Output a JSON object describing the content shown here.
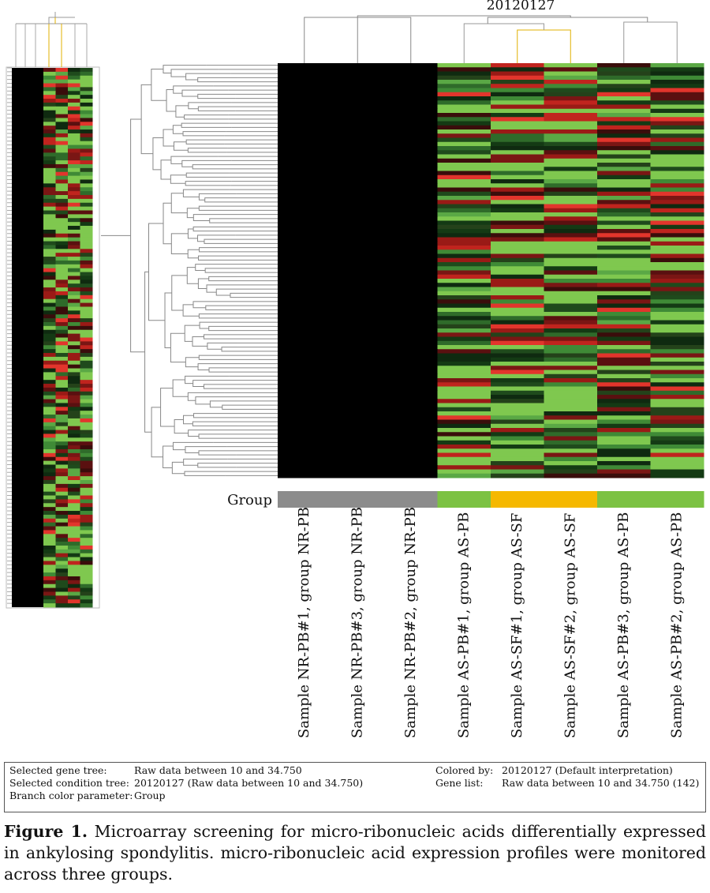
{
  "figure": {
    "condition_title": "20120127",
    "group_label": "Group",
    "samples": [
      "Sample NR-PB#1, group NR-PB",
      "Sample NR-PB#3, group NR-PB",
      "Sample NR-PB#2, group NR-PB",
      "Sample AS-PB#1, group AS-PB",
      "Sample AS-SF#1, group AS-SF",
      "Sample AS-SF#2, group AS-SF",
      "Sample AS-PB#3, group AS-PB",
      "Sample AS-PB#2, group AS-PB"
    ],
    "info": {
      "left": [
        {
          "key": "Selected gene tree:",
          "value": "Raw data between 10 and 34.750"
        },
        {
          "key": "Selected condition tree:",
          "value": "20120127 (Raw data between 10 and 34.750)"
        },
        {
          "key": "Branch color parameter:",
          "value": "Group"
        }
      ],
      "right": [
        {
          "key": "Colored by:",
          "value": "20120127 (Default interpretation)"
        },
        {
          "key": "Gene list:",
          "value": "Raw data between 10 and 34.750 (142)"
        }
      ]
    },
    "caption": {
      "label": "Figure 1.",
      "text": "Microarray screening for micro-ribonucleic acids differentially expressed in ankylosing spondylitis. micro-ribonucleic acid expression profiles were monitored across three groups."
    }
  }
}
